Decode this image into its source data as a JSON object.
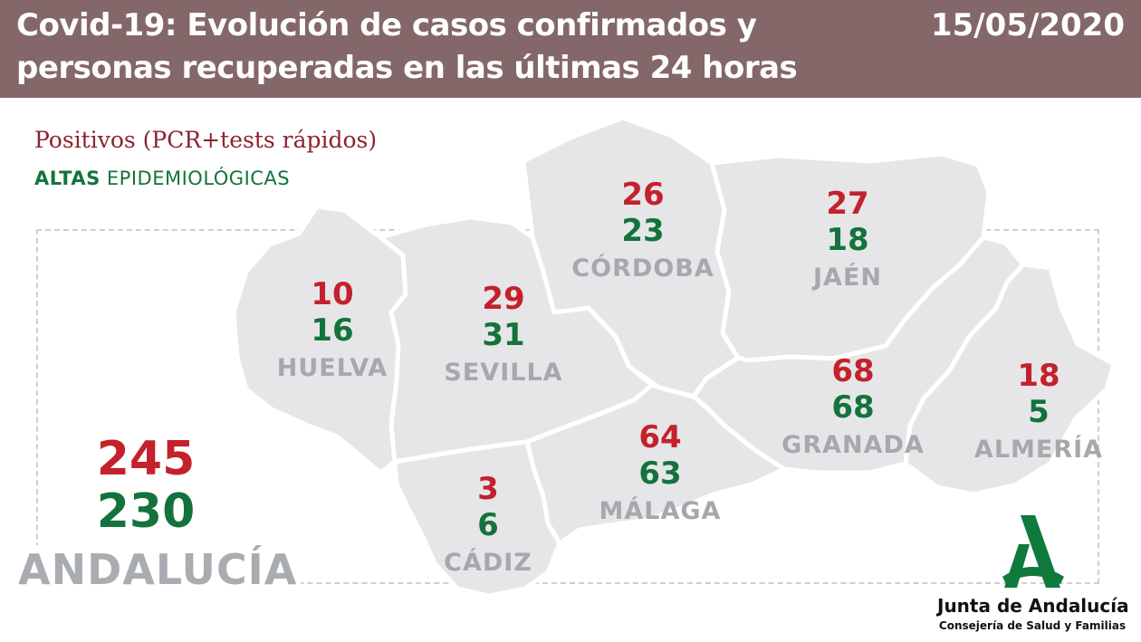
{
  "header": {
    "title_line1": "Covid-19: Evolución de casos confirmados y",
    "title_line2": "personas recuperadas en las últimas 24 horas",
    "date": "15/05/2020"
  },
  "legend": {
    "positivos": "Positivos (PCR+tests rápidos)",
    "altas_bold": "ALTAS",
    "altas_rest": " EPIDEMIOLÓGICAS"
  },
  "provinces": [
    {
      "name": "HUELVA",
      "positivos": "10",
      "altas": "16"
    },
    {
      "name": "SEVILLA",
      "positivos": "29",
      "altas": "31"
    },
    {
      "name": "CÓRDOBA",
      "positivos": "26",
      "altas": "23"
    },
    {
      "name": "JAÉN",
      "positivos": "27",
      "altas": "18"
    },
    {
      "name": "GRANADA",
      "positivos": "68",
      "altas": "68"
    },
    {
      "name": "ALMERÍA",
      "positivos": "18",
      "altas": "5"
    },
    {
      "name": "MÁLAGA",
      "positivos": "64",
      "altas": "63"
    },
    {
      "name": "CÁDIZ",
      "positivos": "3",
      "altas": "6"
    }
  ],
  "total": {
    "name": "ANDALUCÍA",
    "positivos": "245",
    "altas": "230"
  },
  "logo": {
    "org": "Junta de Andalucía",
    "dept": "Consejería de Salud y Familias"
  },
  "colors": {
    "header_bg": "#836769",
    "positivos": "#c4212c",
    "altas": "#14733c",
    "map_fill": "#e6e6e8",
    "province_border": "#ffffff",
    "name_grey": "#a5a8ac"
  }
}
